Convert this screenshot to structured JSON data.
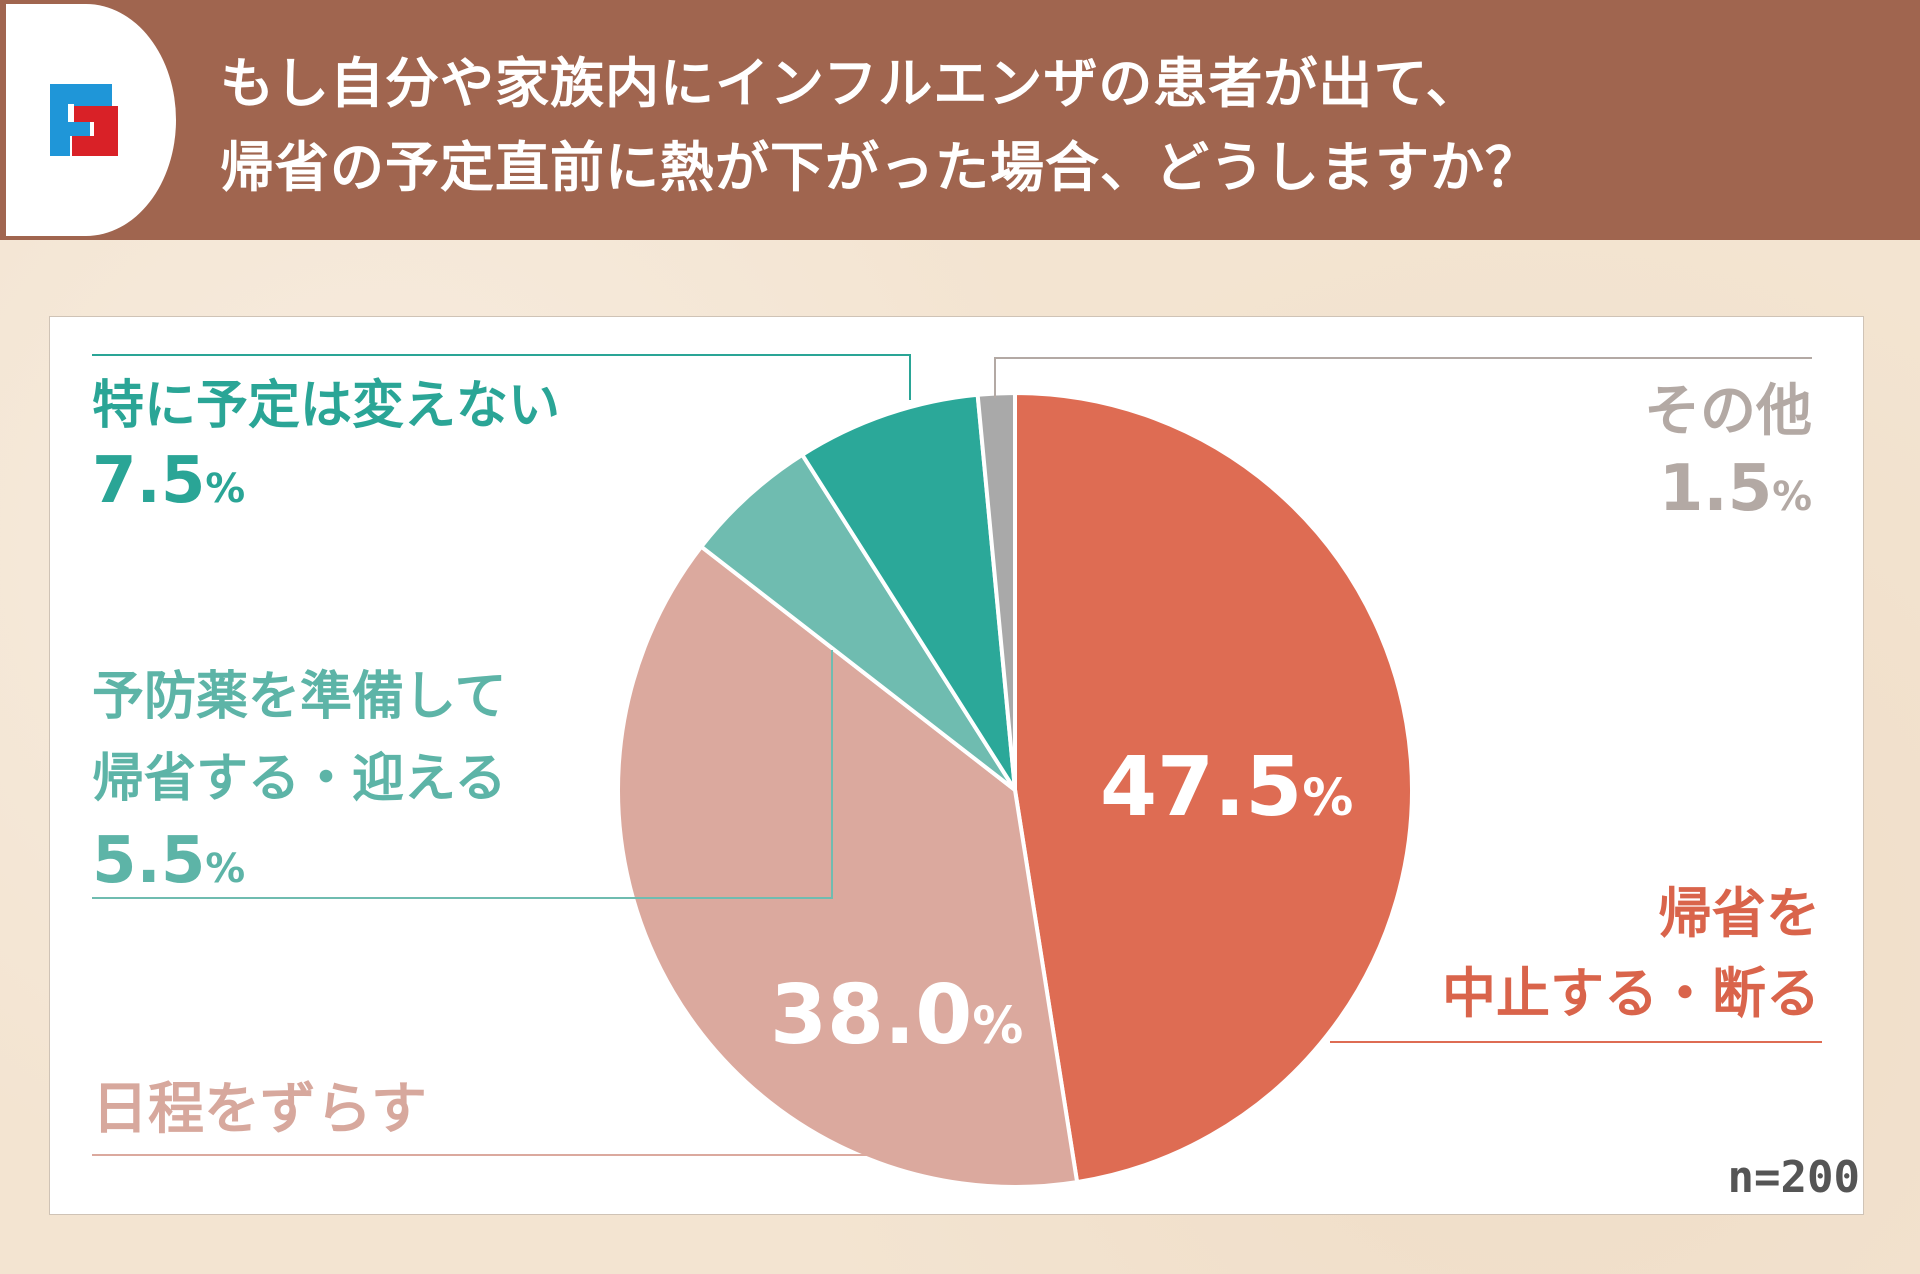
{
  "header": {
    "title_line1": "もし自分や家族内にインフルエンザの患者が出て、",
    "title_line2": "帰省の予定直前に熱が下がった場合、どうしますか？",
    "logo_colors": {
      "blue": "#1f96d8",
      "red": "#d92127"
    }
  },
  "chart_data": {
    "type": "pie",
    "title": "もし自分や家族内にインフルエンザの患者が出て、帰省の予定直前に熱が下がった場合、どうしますか？",
    "unit": "%",
    "order": "clockwise from top",
    "slices": [
      {
        "label": "帰省を中止する・断る",
        "label_lines": [
          "帰省を",
          "中止する・断る"
        ],
        "value": 47.5,
        "value_text": "47.5",
        "color": "#de6c53"
      },
      {
        "label": "日程をずらす",
        "label_lines": [
          "日程をずらす"
        ],
        "value": 38.0,
        "value_text": "38.0",
        "color": "#dba99e"
      },
      {
        "label": "予防薬を準備して帰省する・迎える",
        "label_lines": [
          "予防薬を準備して",
          "帰省する・迎える"
        ],
        "value": 5.5,
        "value_text": "5.5",
        "color": "#6fbcb0"
      },
      {
        "label": "特に予定は変えない",
        "label_lines": [
          "特に予定は変えない"
        ],
        "value": 7.5,
        "value_text": "7.5",
        "color": "#2ba899"
      },
      {
        "label": "その他",
        "label_lines": [
          "その他"
        ],
        "value": 1.5,
        "value_text": "1.5",
        "color": "#a9a9a9"
      }
    ],
    "label_colors": [
      "#d9644b",
      "#d7a89d",
      "#5db4a7",
      "#2aa596",
      "#b3a9a4"
    ],
    "percent_sign": "%",
    "sample_size": "n=200"
  }
}
